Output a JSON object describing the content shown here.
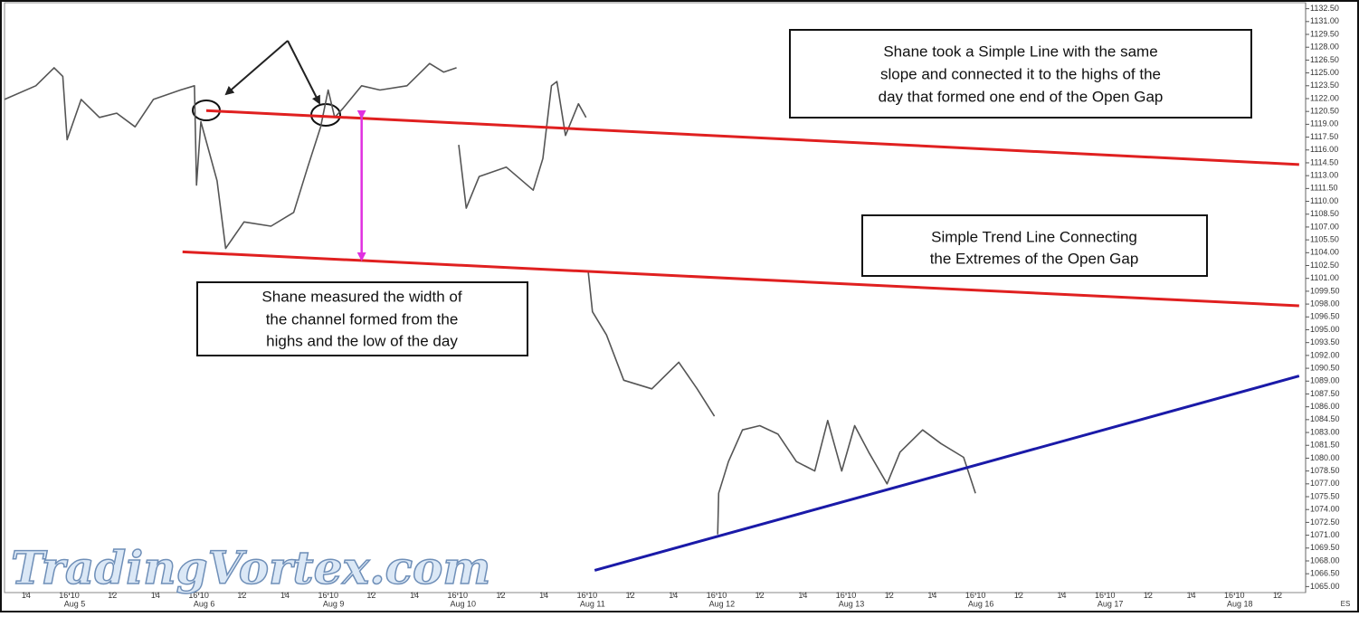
{
  "chart_data": {
    "type": "line",
    "color": "#555555",
    "xlim": [
      -3,
      57.3
    ],
    "ylim": [
      1064.3,
      1133.2
    ],
    "x": [
      -3.0,
      -1.55,
      -0.7,
      -0.3,
      -0.1,
      0.55,
      1.4,
      2.2,
      3.05,
      3.9,
      5.15,
      5.8,
      5.9,
      6.1,
      6.85,
      7.25,
      8.1,
      9.35,
      10.4,
      11.05,
      11.65,
      12.0,
      12.3,
      12.7,
      13.55,
      14.4,
      15.65,
      16.7,
      17.35,
      17.95,
      null,
      18.05,
      18.4,
      19.0,
      20.25,
      21.5,
      21.95,
      22.35,
      22.6,
      23.0,
      23.6,
      23.95,
      null,
      24.05,
      24.25,
      24.9,
      25.7,
      27.0,
      28.25,
      29.1,
      29.9,
      null,
      30.05,
      30.1,
      30.55,
      31.2,
      32.0,
      32.85,
      33.7,
      34.55,
      35.15,
      35.8,
      36.4,
      37.05,
      37.9,
      38.5,
      39.55,
      40.4,
      41.45,
      42.0
    ],
    "values": [
      1121.9,
      1123.5,
      1125.6,
      1124.6,
      1117.2,
      1121.9,
      1119.8,
      1120.3,
      1118.7,
      1121.9,
      1123.0,
      1123.5,
      1111.9,
      1119.3,
      1112.4,
      1104.5,
      1107.6,
      1107.1,
      1108.7,
      1114.0,
      1118.7,
      1123.0,
      1119.8,
      1120.9,
      1123.5,
      1123.0,
      1123.5,
      1126.1,
      1125.1,
      1125.6,
      null,
      1116.6,
      1109.2,
      1112.9,
      1114.0,
      1111.3,
      1115.0,
      1123.5,
      1124.0,
      1117.7,
      1121.4,
      1119.8,
      null,
      1101.8,
      1097.1,
      1094.4,
      1089.1,
      1088.1,
      1091.2,
      1088.1,
      1084.9,
      null,
      1071.1,
      1075.9,
      1079.6,
      1083.3,
      1083.8,
      1082.8,
      1079.6,
      1078.5,
      1084.4,
      1078.5,
      1083.8,
      1080.7,
      1077.0,
      1080.7,
      1083.3,
      1081.7,
      1080.1,
      1075.9
    ],
    "yticks": [
      {
        "value": 1132.5,
        "label": "1132.50"
      },
      {
        "value": 1131,
        "label": "1131.00"
      },
      {
        "value": 1129.5,
        "label": "1129.50"
      },
      {
        "value": 1128,
        "label": "1128.00"
      },
      {
        "value": 1126.5,
        "label": "1126.50"
      },
      {
        "value": 1125,
        "label": "1125.00"
      },
      {
        "value": 1123.5,
        "label": "1123.50"
      },
      {
        "value": 1122,
        "label": "1122.00"
      },
      {
        "value": 1120.5,
        "label": "1120.50"
      },
      {
        "value": 1119,
        "label": "1119.00"
      },
      {
        "value": 1117.5,
        "label": "1117.50"
      },
      {
        "value": 1116,
        "label": "1116.00"
      },
      {
        "value": 1114.5,
        "label": "1114.50"
      },
      {
        "value": 1113,
        "label": "1113.00"
      },
      {
        "value": 1111.5,
        "label": "1111.50"
      },
      {
        "value": 1110,
        "label": "1110.00"
      },
      {
        "value": 1108.5,
        "label": "1108.50"
      },
      {
        "value": 1107,
        "label": "1107.00"
      },
      {
        "value": 1105.5,
        "label": "1105.50"
      },
      {
        "value": 1104,
        "label": "1104.00"
      },
      {
        "value": 1102.5,
        "label": "1102.50"
      },
      {
        "value": 1101,
        "label": "1101.00"
      },
      {
        "value": 1099.5,
        "label": "1099.50"
      },
      {
        "value": 1098,
        "label": "1098.00"
      },
      {
        "value": 1096.5,
        "label": "1096.50"
      },
      {
        "value": 1095,
        "label": "1095.00"
      },
      {
        "value": 1093.5,
        "label": "1093.50"
      },
      {
        "value": 1092,
        "label": "1092.00"
      },
      {
        "value": 1090.5,
        "label": "1090.50"
      },
      {
        "value": 1089,
        "label": "1089.00"
      },
      {
        "value": 1087.5,
        "label": "1087.50"
      },
      {
        "value": 1086,
        "label": "1086.00"
      },
      {
        "value": 1084.5,
        "label": "1084.50"
      },
      {
        "value": 1083,
        "label": "1083.00"
      },
      {
        "value": 1081.5,
        "label": "1081.50"
      },
      {
        "value": 1080,
        "label": "1080.00"
      },
      {
        "value": 1078.5,
        "label": "1078.50"
      },
      {
        "value": 1077,
        "label": "1077.00"
      },
      {
        "value": 1075.5,
        "label": "1075.50"
      },
      {
        "value": 1074,
        "label": "1074.00"
      },
      {
        "value": 1072.5,
        "label": "1072.50"
      },
      {
        "value": 1071,
        "label": "1071.00"
      },
      {
        "value": 1069.5,
        "label": "1069.50"
      },
      {
        "value": 1068,
        "label": "1068.00"
      },
      {
        "value": 1066.5,
        "label": "1066.50"
      },
      {
        "value": 1065,
        "label": "1065.00"
      }
    ],
    "xticks": [
      {
        "value": -2,
        "label": "14"
      },
      {
        "value": 0,
        "label": "16 10"
      },
      {
        "value": 2,
        "label": "12"
      },
      {
        "value": 4,
        "label": "14"
      },
      {
        "value": 6,
        "label": "16 10"
      },
      {
        "value": 8,
        "label": "12"
      },
      {
        "value": 10,
        "label": "14"
      },
      {
        "value": 12,
        "label": "16 10"
      },
      {
        "value": 14,
        "label": "12"
      },
      {
        "value": 16,
        "label": "14"
      },
      {
        "value": 18,
        "label": "16 10"
      },
      {
        "value": 20,
        "label": "12"
      },
      {
        "value": 22,
        "label": "14"
      },
      {
        "value": 24,
        "label": "16 10"
      },
      {
        "value": 26,
        "label": "12"
      },
      {
        "value": 28,
        "label": "14"
      },
      {
        "value": 30,
        "label": "16 10"
      },
      {
        "value": 32,
        "label": "12"
      },
      {
        "value": 34,
        "label": "14"
      },
      {
        "value": 36,
        "label": "16 10"
      },
      {
        "value": 38,
        "label": "12"
      },
      {
        "value": 40,
        "label": "14"
      },
      {
        "value": 42,
        "label": "16 10"
      },
      {
        "value": 44,
        "label": "12"
      },
      {
        "value": 46,
        "label": "14"
      },
      {
        "value": 48,
        "label": "16 10"
      },
      {
        "value": 50,
        "label": "12"
      },
      {
        "value": 52,
        "label": "14"
      },
      {
        "value": 54,
        "label": "16 10"
      },
      {
        "value": 56,
        "label": "12"
      }
    ],
    "date_ticks": [
      {
        "value": 0.25,
        "label": "Aug 5"
      },
      {
        "value": 6.25,
        "label": "Aug 6"
      },
      {
        "value": 12.25,
        "label": "Aug 9"
      },
      {
        "value": 18.25,
        "label": "Aug 10"
      },
      {
        "value": 24.25,
        "label": "Aug 11"
      },
      {
        "value": 30.25,
        "label": "Aug 12"
      },
      {
        "value": 36.25,
        "label": "Aug 13"
      },
      {
        "value": 42.25,
        "label": "Aug 16"
      },
      {
        "value": 48.25,
        "label": "Aug 17"
      },
      {
        "value": 54.25,
        "label": "Aug 18"
      }
    ],
    "trend_lines": [
      {
        "color": "#e02020",
        "x": [
          6.35,
          57.0
        ],
        "values": [
          1120.6,
          1114.3
        ]
      },
      {
        "color": "#e02020",
        "x": [
          5.25,
          57.0
        ],
        "values": [
          1104.1,
          1097.8
        ]
      },
      {
        "color": "#1a1aa8",
        "x": [
          24.35,
          57.0
        ],
        "values": [
          1066.9,
          1089.6
        ]
      }
    ],
    "measure_arrow": {
      "color": "#e030e0",
      "x": 13.55,
      "values": [
        1119.8,
        1103.2
      ]
    },
    "annotations": [
      {
        "lines": [
          "Shane took a Simple Line with the same",
          "slope and connected it to the highs of the",
          "day that formed one end of the Open Gap"
        ]
      },
      {
        "lines": [
          "Simple Trend Line Connecting",
          "the Extremes of the Open Gap"
        ]
      },
      {
        "lines": [
          "Shane measured the width of",
          "the channel formed from the",
          "highs and the low of the day"
        ]
      }
    ],
    "watermark": "TradingVortex.com",
    "corner_label": "ES"
  }
}
